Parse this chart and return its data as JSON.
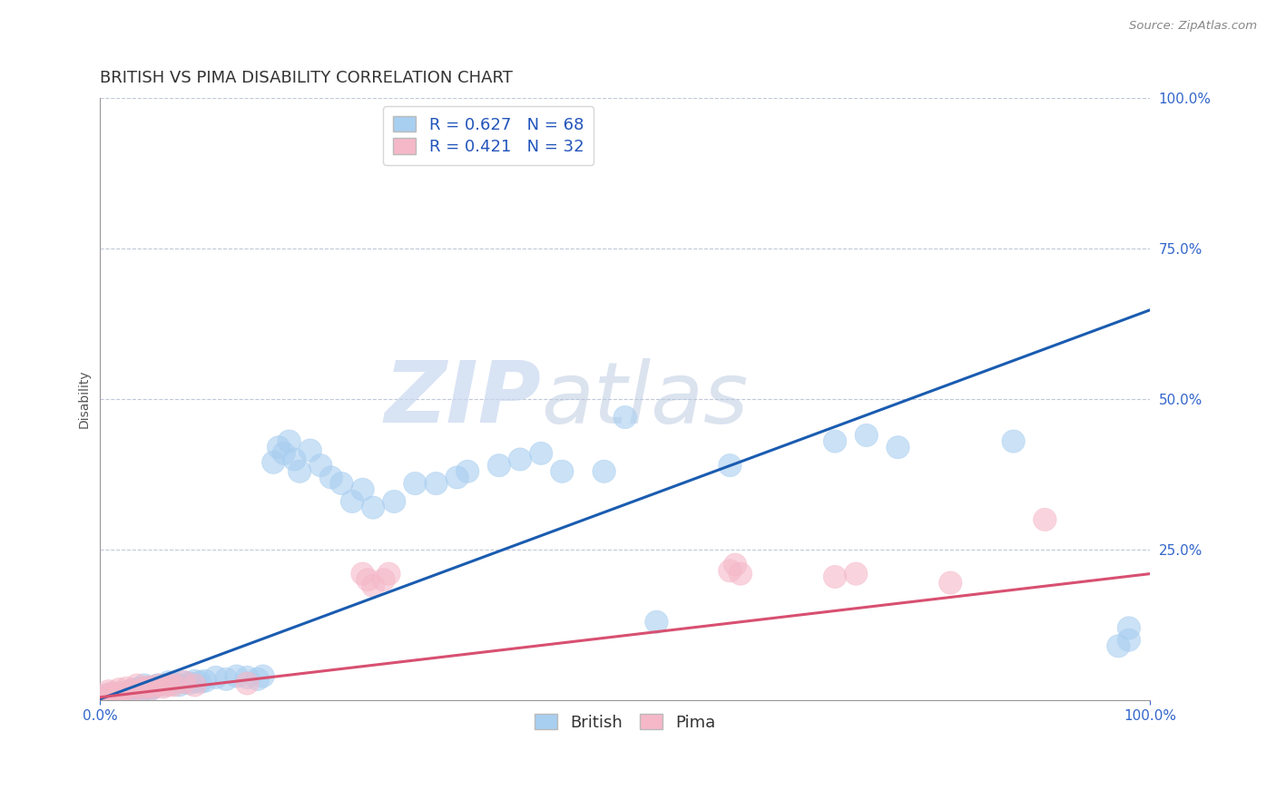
{
  "title": "BRITISH VS PIMA DISABILITY CORRELATION CHART",
  "source_text": "Source: ZipAtlas.com",
  "ylabel": "Disability",
  "xlim": [
    0.0,
    1.0
  ],
  "ylim": [
    0.0,
    1.0
  ],
  "british_color": "#A8CEF0",
  "pima_color": "#F5B8C8",
  "british_line_color": "#1A5CB0",
  "pima_line_color": "#D85070",
  "background_color": "#ffffff",
  "watermark_color": "#D0DCF0",
  "british_r": 0.627,
  "british_n": 68,
  "pima_r": 0.421,
  "pima_n": 32,
  "british_points": [
    [
      0.005,
      0.005
    ],
    [
      0.008,
      0.01
    ],
    [
      0.01,
      0.005
    ],
    [
      0.012,
      0.008
    ],
    [
      0.015,
      0.005
    ],
    [
      0.018,
      0.01
    ],
    [
      0.02,
      0.008
    ],
    [
      0.022,
      0.012
    ],
    [
      0.025,
      0.008
    ],
    [
      0.028,
      0.015
    ],
    [
      0.03,
      0.01
    ],
    [
      0.032,
      0.018
    ],
    [
      0.035,
      0.015
    ],
    [
      0.038,
      0.02
    ],
    [
      0.04,
      0.015
    ],
    [
      0.042,
      0.025
    ],
    [
      0.045,
      0.02
    ],
    [
      0.048,
      0.018
    ],
    [
      0.05,
      0.022
    ],
    [
      0.055,
      0.025
    ],
    [
      0.06,
      0.025
    ],
    [
      0.065,
      0.03
    ],
    [
      0.07,
      0.028
    ],
    [
      0.075,
      0.025
    ],
    [
      0.08,
      0.03
    ],
    [
      0.085,
      0.028
    ],
    [
      0.09,
      0.032
    ],
    [
      0.095,
      0.03
    ],
    [
      0.1,
      0.032
    ],
    [
      0.11,
      0.038
    ],
    [
      0.12,
      0.035
    ],
    [
      0.13,
      0.04
    ],
    [
      0.14,
      0.038
    ],
    [
      0.15,
      0.035
    ],
    [
      0.155,
      0.04
    ],
    [
      0.165,
      0.395
    ],
    [
      0.17,
      0.42
    ],
    [
      0.175,
      0.41
    ],
    [
      0.18,
      0.43
    ],
    [
      0.185,
      0.4
    ],
    [
      0.19,
      0.38
    ],
    [
      0.2,
      0.415
    ],
    [
      0.21,
      0.39
    ],
    [
      0.22,
      0.37
    ],
    [
      0.23,
      0.36
    ],
    [
      0.24,
      0.33
    ],
    [
      0.25,
      0.35
    ],
    [
      0.26,
      0.32
    ],
    [
      0.28,
      0.33
    ],
    [
      0.3,
      0.36
    ],
    [
      0.32,
      0.36
    ],
    [
      0.34,
      0.37
    ],
    [
      0.35,
      0.38
    ],
    [
      0.38,
      0.39
    ],
    [
      0.4,
      0.4
    ],
    [
      0.42,
      0.41
    ],
    [
      0.44,
      0.38
    ],
    [
      0.48,
      0.38
    ],
    [
      0.5,
      0.47
    ],
    [
      0.53,
      0.13
    ],
    [
      0.6,
      0.39
    ],
    [
      0.7,
      0.43
    ],
    [
      0.73,
      0.44
    ],
    [
      0.76,
      0.42
    ],
    [
      0.87,
      0.43
    ],
    [
      0.98,
      0.1
    ],
    [
      0.98,
      0.12
    ],
    [
      0.97,
      0.09
    ]
  ],
  "pima_points": [
    [
      0.005,
      0.008
    ],
    [
      0.008,
      0.015
    ],
    [
      0.01,
      0.008
    ],
    [
      0.012,
      0.012
    ],
    [
      0.015,
      0.01
    ],
    [
      0.018,
      0.018
    ],
    [
      0.02,
      0.012
    ],
    [
      0.025,
      0.02
    ],
    [
      0.03,
      0.015
    ],
    [
      0.035,
      0.025
    ],
    [
      0.04,
      0.018
    ],
    [
      0.045,
      0.022
    ],
    [
      0.05,
      0.02
    ],
    [
      0.055,
      0.025
    ],
    [
      0.06,
      0.022
    ],
    [
      0.065,
      0.025
    ],
    [
      0.07,
      0.025
    ],
    [
      0.08,
      0.03
    ],
    [
      0.09,
      0.025
    ],
    [
      0.14,
      0.028
    ],
    [
      0.25,
      0.21
    ],
    [
      0.255,
      0.2
    ],
    [
      0.26,
      0.19
    ],
    [
      0.27,
      0.2
    ],
    [
      0.275,
      0.21
    ],
    [
      0.6,
      0.215
    ],
    [
      0.605,
      0.225
    ],
    [
      0.61,
      0.21
    ],
    [
      0.7,
      0.205
    ],
    [
      0.72,
      0.21
    ],
    [
      0.81,
      0.195
    ],
    [
      0.9,
      0.3
    ]
  ],
  "british_line_x": [
    0.0,
    1.0
  ],
  "british_line_y": [
    0.002,
    0.648
  ],
  "pima_line_x": [
    0.0,
    1.0
  ],
  "pima_line_y": [
    0.005,
    0.21
  ],
  "grid_color": "#C0C8D8",
  "title_fontsize": 13,
  "axis_label_fontsize": 10,
  "tick_fontsize": 11,
  "legend_fontsize": 13
}
